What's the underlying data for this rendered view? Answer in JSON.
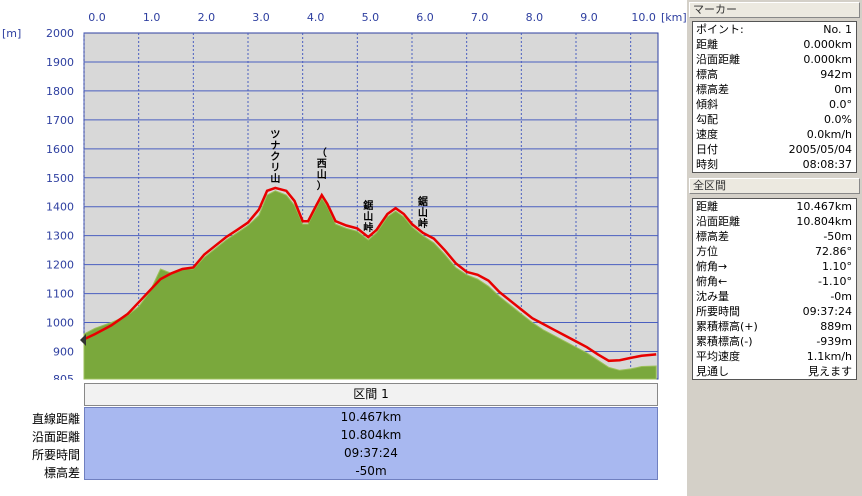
{
  "chart_data": {
    "type": "area",
    "x_unit": "[km]",
    "y_unit": "[m]",
    "xlim": [
      0,
      10.5
    ],
    "ylim": [
      805,
      2000
    ],
    "x_ticks": [
      "0.0",
      "1.0",
      "2.0",
      "3.0",
      "4.0",
      "5.0",
      "6.0",
      "7.0",
      "8.0",
      "9.0",
      "10.0"
    ],
    "y_ticks": [
      "2000",
      "1900",
      "1800",
      "1700",
      "1600",
      "1500",
      "1400",
      "1300",
      "1200",
      "1100",
      "1000",
      "900",
      "805"
    ],
    "grid": true,
    "series": [
      {
        "color": "#e80000",
        "points": [
          [
            0,
            942
          ],
          [
            0.2,
            960
          ],
          [
            0.5,
            990
          ],
          [
            0.8,
            1030
          ],
          [
            1.0,
            1070
          ],
          [
            1.2,
            1110
          ],
          [
            1.4,
            1150
          ],
          [
            1.6,
            1170
          ],
          [
            1.8,
            1185
          ],
          [
            2.0,
            1190
          ],
          [
            2.2,
            1235
          ],
          [
            2.4,
            1265
          ],
          [
            2.6,
            1295
          ],
          [
            2.8,
            1320
          ],
          [
            3.0,
            1345
          ],
          [
            3.2,
            1390
          ],
          [
            3.35,
            1455
          ],
          [
            3.5,
            1465
          ],
          [
            3.7,
            1455
          ],
          [
            3.85,
            1420
          ],
          [
            4.0,
            1350
          ],
          [
            4.1,
            1350
          ],
          [
            4.25,
            1405
          ],
          [
            4.35,
            1440
          ],
          [
            4.45,
            1410
          ],
          [
            4.6,
            1350
          ],
          [
            4.8,
            1335
          ],
          [
            5.0,
            1325
          ],
          [
            5.2,
            1295
          ],
          [
            5.35,
            1320
          ],
          [
            5.55,
            1375
          ],
          [
            5.7,
            1395
          ],
          [
            5.85,
            1375
          ],
          [
            6.0,
            1340
          ],
          [
            6.2,
            1310
          ],
          [
            6.4,
            1290
          ],
          [
            6.6,
            1250
          ],
          [
            6.8,
            1205
          ],
          [
            7.0,
            1175
          ],
          [
            7.2,
            1165
          ],
          [
            7.4,
            1145
          ],
          [
            7.6,
            1105
          ],
          [
            7.8,
            1075
          ],
          [
            8.0,
            1045
          ],
          [
            8.2,
            1015
          ],
          [
            8.4,
            995
          ],
          [
            8.6,
            975
          ],
          [
            8.8,
            955
          ],
          [
            9.0,
            935
          ],
          [
            9.2,
            915
          ],
          [
            9.4,
            890
          ],
          [
            9.6,
            868
          ],
          [
            9.8,
            870
          ],
          [
            10.0,
            878
          ],
          [
            10.2,
            885
          ],
          [
            10.467,
            890
          ]
        ]
      },
      {
        "color": "#7aa83c",
        "points": [
          [
            0,
            960
          ],
          [
            0.2,
            980
          ],
          [
            0.5,
            1000
          ],
          [
            0.8,
            1025
          ],
          [
            1.0,
            1055
          ],
          [
            1.2,
            1105
          ],
          [
            1.4,
            1185
          ],
          [
            1.6,
            1170
          ],
          [
            1.8,
            1185
          ],
          [
            2.0,
            1185
          ],
          [
            2.2,
            1225
          ],
          [
            2.4,
            1255
          ],
          [
            2.6,
            1285
          ],
          [
            2.8,
            1310
          ],
          [
            3.0,
            1335
          ],
          [
            3.2,
            1370
          ],
          [
            3.35,
            1440
          ],
          [
            3.5,
            1455
          ],
          [
            3.7,
            1440
          ],
          [
            3.85,
            1405
          ],
          [
            4.0,
            1340
          ],
          [
            4.1,
            1340
          ],
          [
            4.25,
            1395
          ],
          [
            4.35,
            1430
          ],
          [
            4.45,
            1400
          ],
          [
            4.6,
            1340
          ],
          [
            4.8,
            1325
          ],
          [
            5.0,
            1315
          ],
          [
            5.2,
            1285
          ],
          [
            5.35,
            1310
          ],
          [
            5.55,
            1365
          ],
          [
            5.7,
            1385
          ],
          [
            5.85,
            1365
          ],
          [
            6.0,
            1330
          ],
          [
            6.2,
            1300
          ],
          [
            6.4,
            1275
          ],
          [
            6.6,
            1235
          ],
          [
            6.8,
            1190
          ],
          [
            7.0,
            1165
          ],
          [
            7.2,
            1150
          ],
          [
            7.4,
            1125
          ],
          [
            7.6,
            1090
          ],
          [
            7.8,
            1060
          ],
          [
            8.0,
            1030
          ],
          [
            8.2,
            1000
          ],
          [
            8.4,
            975
          ],
          [
            8.6,
            955
          ],
          [
            8.8,
            935
          ],
          [
            9.0,
            915
          ],
          [
            9.2,
            895
          ],
          [
            9.4,
            870
          ],
          [
            9.6,
            845
          ],
          [
            9.8,
            835
          ],
          [
            10.0,
            840
          ],
          [
            10.2,
            848
          ],
          [
            10.467,
            850
          ]
        ]
      }
    ],
    "annotations": [
      {
        "text": "ツナクリ山",
        "x": 3.5,
        "y": 1465
      },
      {
        "text": "（西山）",
        "x": 4.35,
        "y": 1440
      },
      {
        "text": "鋸山峠",
        "x": 5.2,
        "y": 1295
      },
      {
        "text": "鋸山峠",
        "x": 6.2,
        "y": 1310
      }
    ]
  },
  "section": {
    "header": "区間 1",
    "rows": [
      {
        "label": "直線距離",
        "value": "10.467km"
      },
      {
        "label": "沿面距離",
        "value": "10.804km"
      },
      {
        "label": "所要時間",
        "value": "09:37:24"
      },
      {
        "label": "標高差",
        "value": "-50m"
      }
    ]
  },
  "marker": {
    "title": "マーカー",
    "rows": [
      {
        "k": "ポイント:",
        "v": "No. 1"
      },
      {
        "k": "距離",
        "v": "0.000km"
      },
      {
        "k": "沿面距離",
        "v": "0.000km"
      },
      {
        "k": "標高",
        "v": "942m"
      },
      {
        "k": "標高差",
        "v": "0m"
      },
      {
        "k": "傾斜",
        "v": "0.0°"
      },
      {
        "k": "勾配",
        "v": "0.0%"
      },
      {
        "k": "速度",
        "v": "0.0km/h"
      },
      {
        "k": "日付",
        "v": "2005/05/04"
      },
      {
        "k": "時刻",
        "v": "08:08:37"
      }
    ]
  },
  "all_sections": {
    "title": "全区間",
    "rows": [
      {
        "k": "距離",
        "v": "10.467km"
      },
      {
        "k": "沿面距離",
        "v": "10.804km"
      },
      {
        "k": "標高差",
        "v": "-50m"
      },
      {
        "k": "方位",
        "v": "72.86°"
      },
      {
        "k": "俯角→",
        "v": "1.10°"
      },
      {
        "k": "俯角←",
        "v": "-1.10°"
      },
      {
        "k": "沈み量",
        "v": "-0m"
      },
      {
        "k": "所要時間",
        "v": "09:37:24"
      },
      {
        "k": "累積標高(+)",
        "v": "889m"
      },
      {
        "k": "累積標高(-)",
        "v": "-939m"
      },
      {
        "k": "平均速度",
        "v": "1.1km/h"
      },
      {
        "k": "見通し",
        "v": "見えます"
      }
    ]
  }
}
